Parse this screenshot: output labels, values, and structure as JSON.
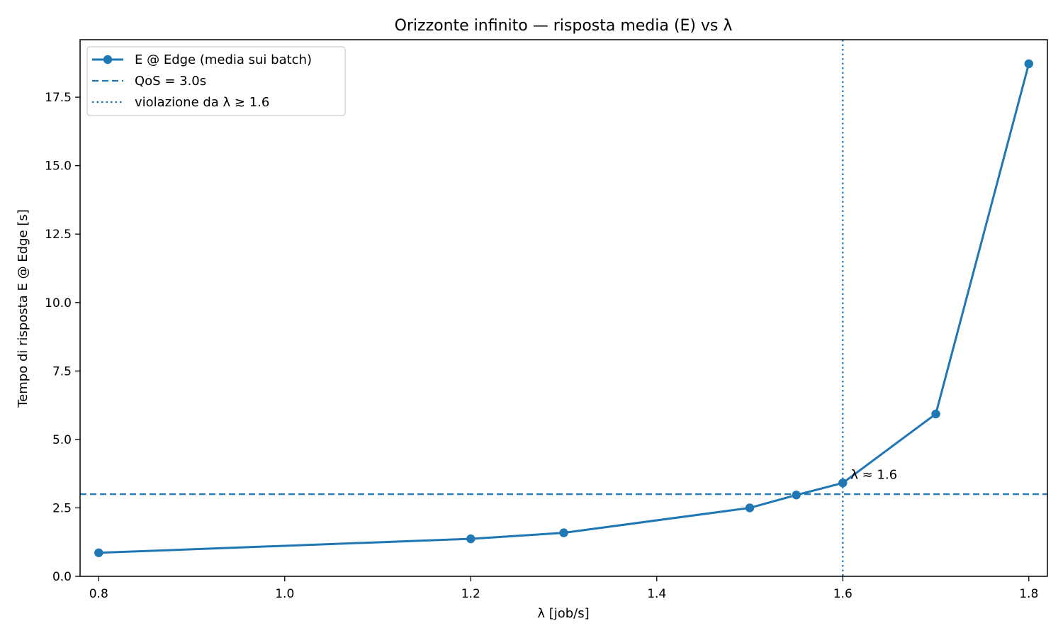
{
  "chart_data": {
    "type": "line",
    "title": "Orizzonte infinito — risposta media (E) vs λ",
    "xlabel": "λ [job/s]",
    "ylabel": "Tempo di risposta E @ Edge [s]",
    "xlim": [
      0.78,
      1.82
    ],
    "ylim": [
      0.0,
      19.6
    ],
    "xticks": [
      0.8,
      1.0,
      1.2,
      1.4,
      1.6,
      1.8
    ],
    "xtick_labels": [
      "0.8",
      "1.0",
      "1.2",
      "1.4",
      "1.6",
      "1.8"
    ],
    "yticks": [
      0.0,
      2.5,
      5.0,
      7.5,
      10.0,
      12.5,
      15.0,
      17.5
    ],
    "ytick_labels": [
      "0.0",
      "2.5",
      "5.0",
      "7.5",
      "10.0",
      "12.5",
      "15.0",
      "17.5"
    ],
    "grid": false,
    "legend_position": "top-left",
    "series": [
      {
        "name": "E @ Edge (media sui batch)",
        "color": "#1f77b4",
        "style": "solid",
        "marker": "circle",
        "x": [
          0.8,
          1.2,
          1.3,
          1.5,
          1.55,
          1.6,
          1.7,
          1.8
        ],
        "y": [
          0.86,
          1.37,
          1.59,
          2.5,
          2.97,
          3.41,
          5.93,
          18.72
        ]
      }
    ],
    "reference_lines": [
      {
        "orientation": "horizontal",
        "value": 3.0,
        "style": "dashed",
        "color": "#1f77b4",
        "legend": "QoS = 3.0s"
      },
      {
        "orientation": "vertical",
        "value": 1.6,
        "style": "dotted",
        "color": "#1f77b4",
        "legend": "violazione da λ ≳ 1.6"
      }
    ],
    "annotations": [
      {
        "text": "λ ≈ 1.6",
        "x": 1.6,
        "y": 3.41
      }
    ]
  }
}
